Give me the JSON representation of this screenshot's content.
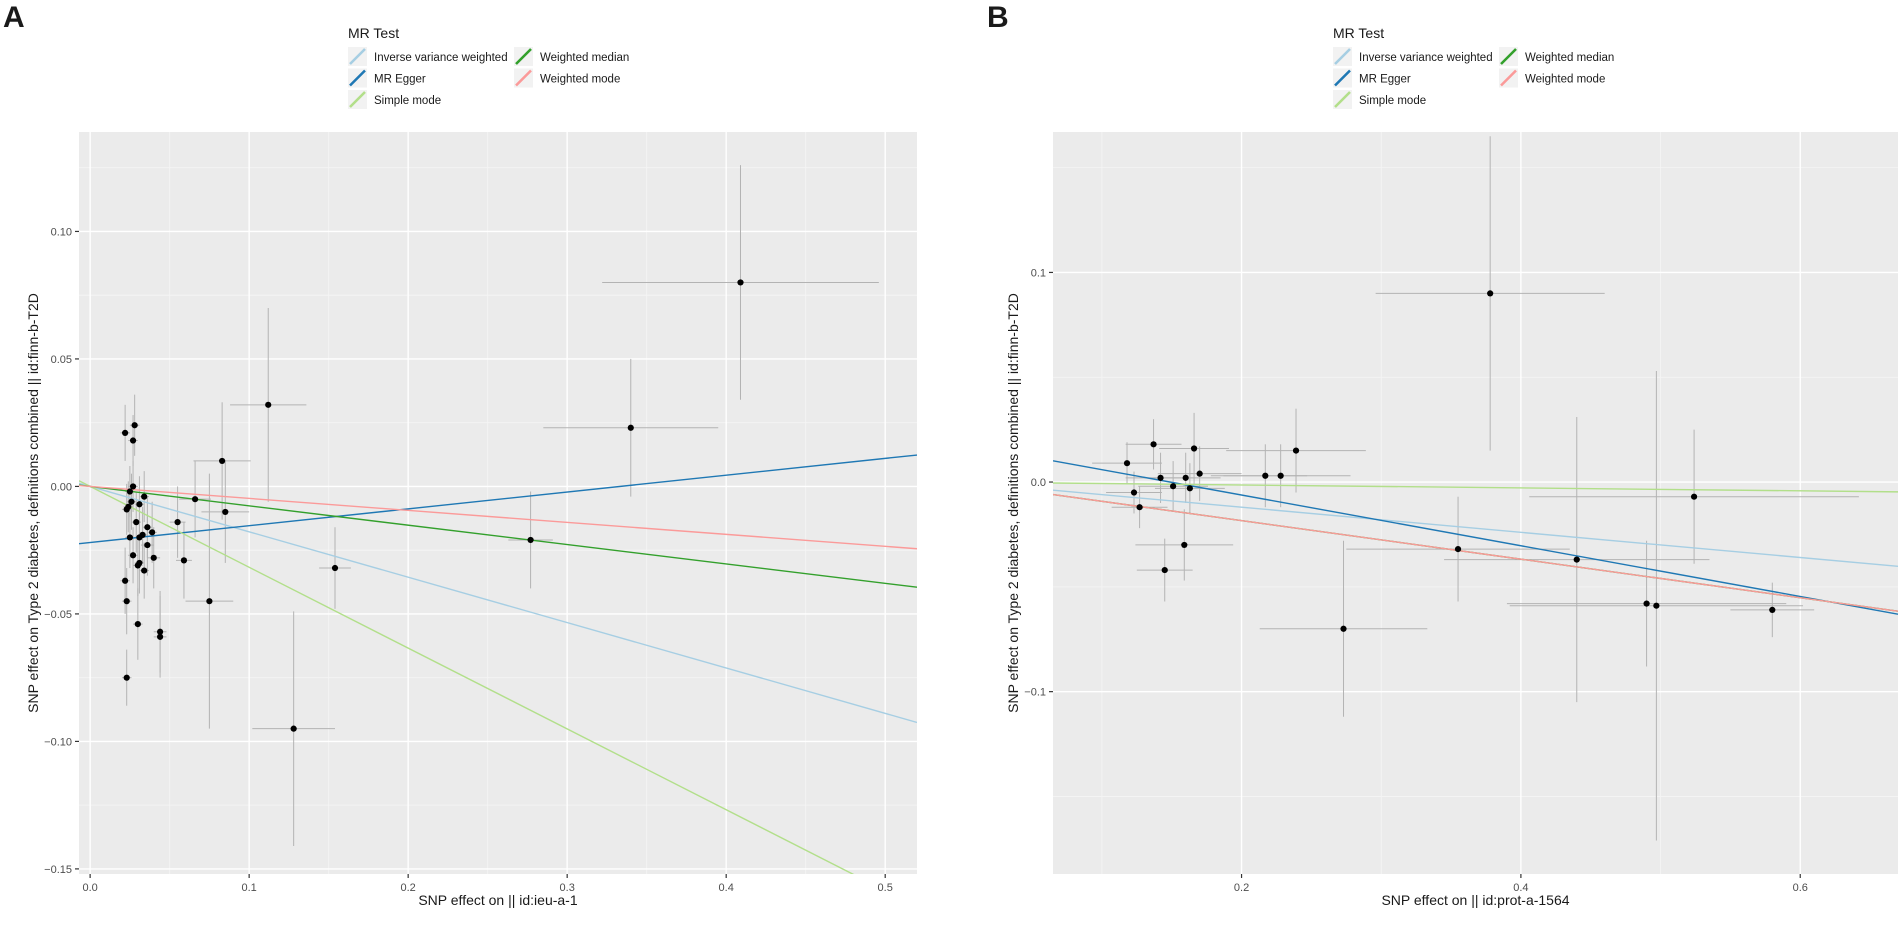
{
  "chart_data": [
    {
      "type": "scatter",
      "panel": "A",
      "xlabel": "SNP effect on  || id:ieu-a-1",
      "ylabel": "SNP effect on Type 2 diabetes, definitions combined || id:finn-b-T2D",
      "xlim": [
        -0.007,
        0.52
      ],
      "ylim": [
        -0.152,
        0.139
      ],
      "xticks": [
        0.0,
        0.1,
        0.2,
        0.3,
        0.4,
        0.5
      ],
      "xtick_labels": [
        "0.0",
        "0.1",
        "0.2",
        "0.3",
        "0.4",
        "0.5"
      ],
      "yticks": [
        -0.15,
        -0.1,
        -0.05,
        0.0,
        0.05,
        0.1
      ],
      "ytick_labels": [
        "−0.15",
        "−0.10",
        "−0.05",
        "0.00",
        "0.05",
        "0.10"
      ],
      "legend": {
        "title": "MR Test",
        "entries": [
          "Inverse variance weighted",
          "Weighted median",
          "MR Egger",
          "Weighted mode",
          "Simple mode"
        ]
      },
      "lines": [
        {
          "name": "Inverse variance weighted",
          "intercept": 0,
          "slope": -0.178,
          "color": "#a6cee3"
        },
        {
          "name": "MR Egger",
          "intercept": -0.022,
          "slope": 0.066,
          "color": "#1f78b4"
        },
        {
          "name": "Simple mode",
          "intercept": 0,
          "slope": -0.317,
          "color": "#b2df8a"
        },
        {
          "name": "Weighted median",
          "intercept": 0,
          "slope": -0.076,
          "color": "#33a02c"
        },
        {
          "name": "Weighted mode",
          "intercept": 0,
          "slope": -0.047,
          "color": "#fb9a99"
        }
      ],
      "points": [
        {
          "x": 0.022,
          "y": 0.021,
          "xe": 0.003,
          "ye": 0.011
        },
        {
          "x": 0.027,
          "y": 0.018,
          "xe": 0.003,
          "ye": 0.01
        },
        {
          "x": 0.028,
          "y": 0.024,
          "xe": 0.003,
          "ye": 0.012
        },
        {
          "x": 0.025,
          "y": -0.002,
          "xe": 0.003,
          "ye": 0.01
        },
        {
          "x": 0.027,
          "y": 0.0,
          "xe": 0.003,
          "ye": 0.01
        },
        {
          "x": 0.024,
          "y": -0.008,
          "xe": 0.003,
          "ye": 0.01
        },
        {
          "x": 0.026,
          "y": -0.006,
          "xe": 0.003,
          "ye": 0.011
        },
        {
          "x": 0.029,
          "y": -0.014,
          "xe": 0.003,
          "ye": 0.012
        },
        {
          "x": 0.023,
          "y": -0.009,
          "xe": 0.003,
          "ye": 0.01
        },
        {
          "x": 0.031,
          "y": -0.007,
          "xe": 0.003,
          "ye": 0.011
        },
        {
          "x": 0.034,
          "y": -0.004,
          "xe": 0.003,
          "ye": 0.01
        },
        {
          "x": 0.025,
          "y": -0.02,
          "xe": 0.003,
          "ye": 0.012
        },
        {
          "x": 0.031,
          "y": -0.02,
          "xe": 0.003,
          "ye": 0.012
        },
        {
          "x": 0.033,
          "y": -0.019,
          "xe": 0.003,
          "ye": 0.011
        },
        {
          "x": 0.036,
          "y": -0.016,
          "xe": 0.003,
          "ye": 0.012
        },
        {
          "x": 0.039,
          "y": -0.018,
          "xe": 0.003,
          "ye": 0.012
        },
        {
          "x": 0.036,
          "y": -0.023,
          "xe": 0.004,
          "ye": 0.012
        },
        {
          "x": 0.027,
          "y": -0.027,
          "xe": 0.003,
          "ye": 0.011
        },
        {
          "x": 0.03,
          "y": -0.031,
          "xe": 0.003,
          "ye": 0.012
        },
        {
          "x": 0.031,
          "y": -0.03,
          "xe": 0.003,
          "ye": 0.012
        },
        {
          "x": 0.034,
          "y": -0.033,
          "xe": 0.003,
          "ye": 0.011
        },
        {
          "x": 0.04,
          "y": -0.028,
          "xe": 0.004,
          "ye": 0.012
        },
        {
          "x": 0.022,
          "y": -0.037,
          "xe": 0.003,
          "ye": 0.013
        },
        {
          "x": 0.023,
          "y": -0.045,
          "xe": 0.003,
          "ye": 0.013
        },
        {
          "x": 0.03,
          "y": -0.054,
          "xe": 0.003,
          "ye": 0.014
        },
        {
          "x": 0.044,
          "y": -0.057,
          "xe": 0.004,
          "ye": 0.016
        },
        {
          "x": 0.044,
          "y": -0.059,
          "xe": 0.004,
          "ye": 0.016
        },
        {
          "x": 0.023,
          "y": -0.075,
          "xe": 0.003,
          "ye": 0.011
        },
        {
          "x": 0.055,
          "y": -0.014,
          "xe": 0.005,
          "ye": 0.014
        },
        {
          "x": 0.059,
          "y": -0.029,
          "xe": 0.005,
          "ye": 0.015
        },
        {
          "x": 0.066,
          "y": -0.005,
          "xe": 0.01,
          "ye": 0.015
        },
        {
          "x": 0.075,
          "y": -0.045,
          "xe": 0.015,
          "ye": 0.05
        },
        {
          "x": 0.083,
          "y": 0.01,
          "xe": 0.018,
          "ye": 0.023
        },
        {
          "x": 0.085,
          "y": -0.01,
          "xe": 0.015,
          "ye": 0.02
        },
        {
          "x": 0.112,
          "y": 0.032,
          "xe": 0.024,
          "ye": 0.038
        },
        {
          "x": 0.128,
          "y": -0.095,
          "xe": 0.026,
          "ye": 0.046
        },
        {
          "x": 0.154,
          "y": -0.032,
          "xe": 0.01,
          "ye": 0.016
        },
        {
          "x": 0.277,
          "y": -0.021,
          "xe": 0.014,
          "ye": 0.019
        },
        {
          "x": 0.34,
          "y": 0.023,
          "xe": 0.055,
          "ye": 0.027
        },
        {
          "x": 0.409,
          "y": 0.08,
          "xe": 0.087,
          "ye": 0.046
        }
      ]
    },
    {
      "type": "scatter",
      "panel": "B",
      "xlabel": "SNP effect on  || id:prot-a-1564",
      "ylabel": "SNP effect on Type 2 diabetes, definitions combined || id:finn-b-T2D",
      "xlim": [
        0.065,
        0.67
      ],
      "ylim": [
        -0.187,
        0.167
      ],
      "xticks": [
        0.2,
        0.4,
        0.6
      ],
      "xtick_labels": [
        "0.2",
        "0.4",
        "0.6"
      ],
      "yticks": [
        -0.1,
        0.0,
        0.1
      ],
      "ytick_labels": [
        "−0.1",
        "0.0",
        "0.1"
      ],
      "legend": {
        "title": "MR Test",
        "entries": [
          "Inverse variance weighted",
          "Weighted median",
          "MR Egger",
          "Weighted mode",
          "Simple mode"
        ]
      },
      "lines": [
        {
          "name": "Inverse variance weighted",
          "intercept": 0,
          "slope": -0.06,
          "color": "#a6cee3"
        },
        {
          "name": "MR Egger",
          "intercept": 0.018,
          "slope": -0.121,
          "color": "#1f78b4"
        },
        {
          "name": "Simple mode",
          "intercept": 0,
          "slope": -0.007,
          "color": "#b2df8a"
        },
        {
          "name": "Weighted median",
          "intercept": 0,
          "slope": -0.092,
          "color": "#33a02c"
        },
        {
          "name": "Weighted mode",
          "intercept": 0,
          "slope": -0.092,
          "color": "#fb9a99"
        }
      ],
      "points": [
        {
          "x": 0.118,
          "y": 0.009,
          "xe": 0.025,
          "ye": 0.01
        },
        {
          "x": 0.123,
          "y": -0.005,
          "xe": 0.02,
          "ye": 0.01
        },
        {
          "x": 0.127,
          "y": -0.012,
          "xe": 0.02,
          "ye": 0.01
        },
        {
          "x": 0.137,
          "y": 0.018,
          "xe": 0.02,
          "ye": 0.012
        },
        {
          "x": 0.142,
          "y": 0.002,
          "xe": 0.025,
          "ye": 0.012
        },
        {
          "x": 0.145,
          "y": -0.042,
          "xe": 0.02,
          "ye": 0.015
        },
        {
          "x": 0.151,
          "y": -0.002,
          "xe": 0.025,
          "ye": 0.012
        },
        {
          "x": 0.16,
          "y": 0.002,
          "xe": 0.025,
          "ye": 0.012
        },
        {
          "x": 0.159,
          "y": -0.03,
          "xe": 0.035,
          "ye": 0.017
        },
        {
          "x": 0.163,
          "y": -0.003,
          "xe": 0.025,
          "ye": 0.012
        },
        {
          "x": 0.166,
          "y": 0.016,
          "xe": 0.025,
          "ye": 0.017
        },
        {
          "x": 0.17,
          "y": 0.004,
          "xe": 0.03,
          "ye": 0.013
        },
        {
          "x": 0.217,
          "y": 0.003,
          "xe": 0.03,
          "ye": 0.015
        },
        {
          "x": 0.228,
          "y": 0.003,
          "xe": 0.05,
          "ye": 0.015
        },
        {
          "x": 0.239,
          "y": 0.015,
          "xe": 0.05,
          "ye": 0.02
        },
        {
          "x": 0.273,
          "y": -0.07,
          "xe": 0.06,
          "ye": 0.042
        },
        {
          "x": 0.355,
          "y": -0.032,
          "xe": 0.08,
          "ye": 0.025
        },
        {
          "x": 0.378,
          "y": 0.09,
          "xe": 0.082,
          "ye": 0.075
        },
        {
          "x": 0.44,
          "y": -0.037,
          "xe": 0.095,
          "ye": 0.068
        },
        {
          "x": 0.49,
          "y": -0.058,
          "xe": 0.1,
          "ye": 0.03
        },
        {
          "x": 0.497,
          "y": -0.059,
          "xe": 0.105,
          "ye": 0.112
        },
        {
          "x": 0.524,
          "y": -0.007,
          "xe": 0.118,
          "ye": 0.032
        },
        {
          "x": 0.58,
          "y": -0.061,
          "xe": 0.03,
          "ye": 0.013
        }
      ]
    }
  ]
}
